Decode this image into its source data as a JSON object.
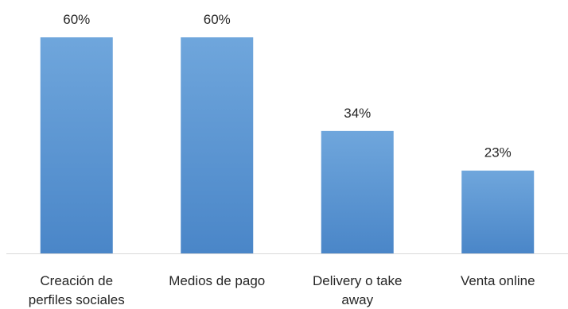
{
  "chart_data": {
    "type": "bar",
    "title": "",
    "xlabel": "",
    "ylabel": "",
    "categories": [
      [
        "Creación de",
        "perfiles sociales"
      ],
      [
        "Medios de pago"
      ],
      [
        "Delivery o take",
        "away"
      ],
      [
        "Venta online"
      ]
    ],
    "values": [
      60,
      60,
      34,
      23
    ],
    "data_labels": [
      "60%",
      "60%",
      "34%",
      "23%"
    ],
    "unit": "%",
    "ylim": [
      0,
      60
    ],
    "grid": false,
    "legend": "none",
    "colors": {
      "bar_top": "#6FA6DC",
      "bar_bottom": "#4A86C8",
      "axis": "#D9D9D9",
      "text": "#262626"
    }
  }
}
